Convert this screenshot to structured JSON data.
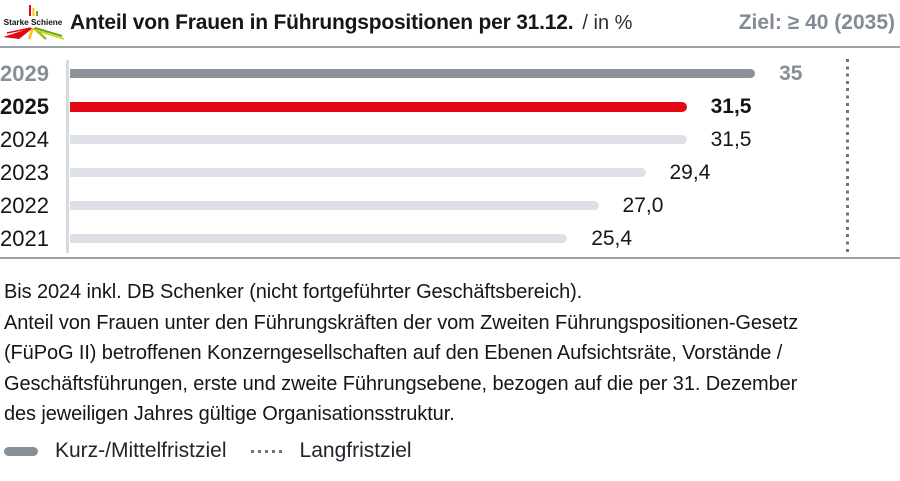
{
  "brand": {
    "logo_text": "Starke Schiene"
  },
  "header": {
    "title": "Anteil von Frauen in Führungspositionen per 31.12.",
    "title_suffix": "/ in %",
    "target_label": "Ziel: ≥ 40 (2035)"
  },
  "chart_data": {
    "type": "bar",
    "orientation": "horizontal",
    "title": "Anteil von Frauen in Führungspositionen per 31.12. / in %",
    "xlim": [
      0,
      40
    ],
    "long_term_target": 40,
    "categories": [
      "2029",
      "2025",
      "2024",
      "2023",
      "2022",
      "2021"
    ],
    "values": [
      35,
      31.5,
      31.5,
      29.4,
      27.0,
      25.4
    ],
    "rows": [
      {
        "year": "2029",
        "value": 35,
        "label": "35",
        "kind": "midterm"
      },
      {
        "year": "2025",
        "value": 31.5,
        "label": "31,5",
        "kind": "current"
      },
      {
        "year": "2024",
        "value": 31.5,
        "label": "31,5",
        "kind": "past"
      },
      {
        "year": "2023",
        "value": 29.4,
        "label": "29,4",
        "kind": "past"
      },
      {
        "year": "2022",
        "value": 27.0,
        "label": "27,0",
        "kind": "past"
      },
      {
        "year": "2021",
        "value": 25.4,
        "label": "25,4",
        "kind": "past"
      }
    ],
    "colors": {
      "current": "#e30613",
      "midterm": "#8b929b",
      "past": "#dde1e5",
      "dotted": "#6b7280",
      "accent_gray_text": "#868e98"
    },
    "grid": "off",
    "legend_position": "bottom"
  },
  "footnote": {
    "lines": [
      "Bis 2024 inkl. DB Schenker (nicht fortgeführter Geschäftsbereich).",
      "Anteil von Frauen unter den Führungskräften der vom Zweiten Führungspositionen-Gesetz",
      "(FüPoG II) betroffenen Konzerngesellschaften auf den Ebenen Aufsichtsräte, Vorstände /",
      "Geschäftsführungen, erste und zweite Führungsebene, bezogen auf die per 31. Dezember",
      "des jeweiligen Jahres gültige Organisationsstruktur."
    ]
  },
  "legend": [
    {
      "marker": "dash",
      "label": "Kurz-/Mittelfristziel"
    },
    {
      "marker": "dotted",
      "label": "Langfristziel"
    }
  ]
}
